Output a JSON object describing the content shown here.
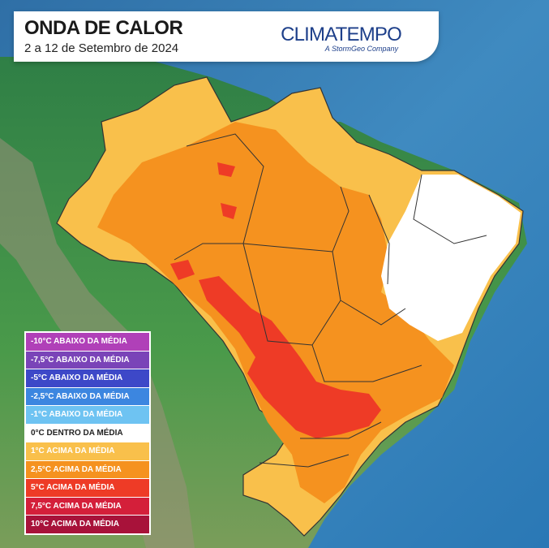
{
  "header": {
    "title": "ONDA DE CALOR",
    "subtitle": "2 a 12 de Setembro de 2024",
    "brand": "CLIMATEMPO",
    "brand_tagline": "A StormGeo Company"
  },
  "legend": [
    {
      "label": "-10°C ABAIXO DA MÉDIA",
      "color": "#b040b8",
      "text": "#ffffff"
    },
    {
      "label": "-7,5°C ABAIXO DA MÉDIA",
      "color": "#7a44b8",
      "text": "#ffffff"
    },
    {
      "label": "-5°C ABAIXO DA MÉDIA",
      "color": "#3d48c8",
      "text": "#ffffff"
    },
    {
      "label": "-2,5°C ABAIXO DA MÉDIA",
      "color": "#3c86e0",
      "text": "#ffffff"
    },
    {
      "label": "-1°C ABAIXO DA MÉDIA",
      "color": "#6ec3f2",
      "text": "#ffffff"
    },
    {
      "label": "0°C DENTRO DA MÉDIA",
      "color": "#ffffff",
      "text": "#222222"
    },
    {
      "label": "1°C ACIMA DA MÉDIA",
      "color": "#f9c04b",
      "text": "#ffffff"
    },
    {
      "label": "2,5°C ACIMA DA MÉDIA",
      "color": "#f5921f",
      "text": "#ffffff"
    },
    {
      "label": "5°C ACIMA DA MÉDIA",
      "color": "#ee3b26",
      "text": "#ffffff"
    },
    {
      "label": "7,5°C ACIMA DA MÉDIA",
      "color": "#d41f3a",
      "text": "#ffffff"
    },
    {
      "label": "10°C ACIMA DA MÉDIA",
      "color": "#a8123a",
      "text": "#ffffff"
    }
  ],
  "colors": {
    "ocean": "#3f8ac0",
    "land": "#3d8d4a",
    "anomaly_1": "#f9c04b",
    "anomaly_2_5": "#f5921f",
    "anomaly_5": "#ee3b26",
    "neutral": "#ffffff"
  }
}
